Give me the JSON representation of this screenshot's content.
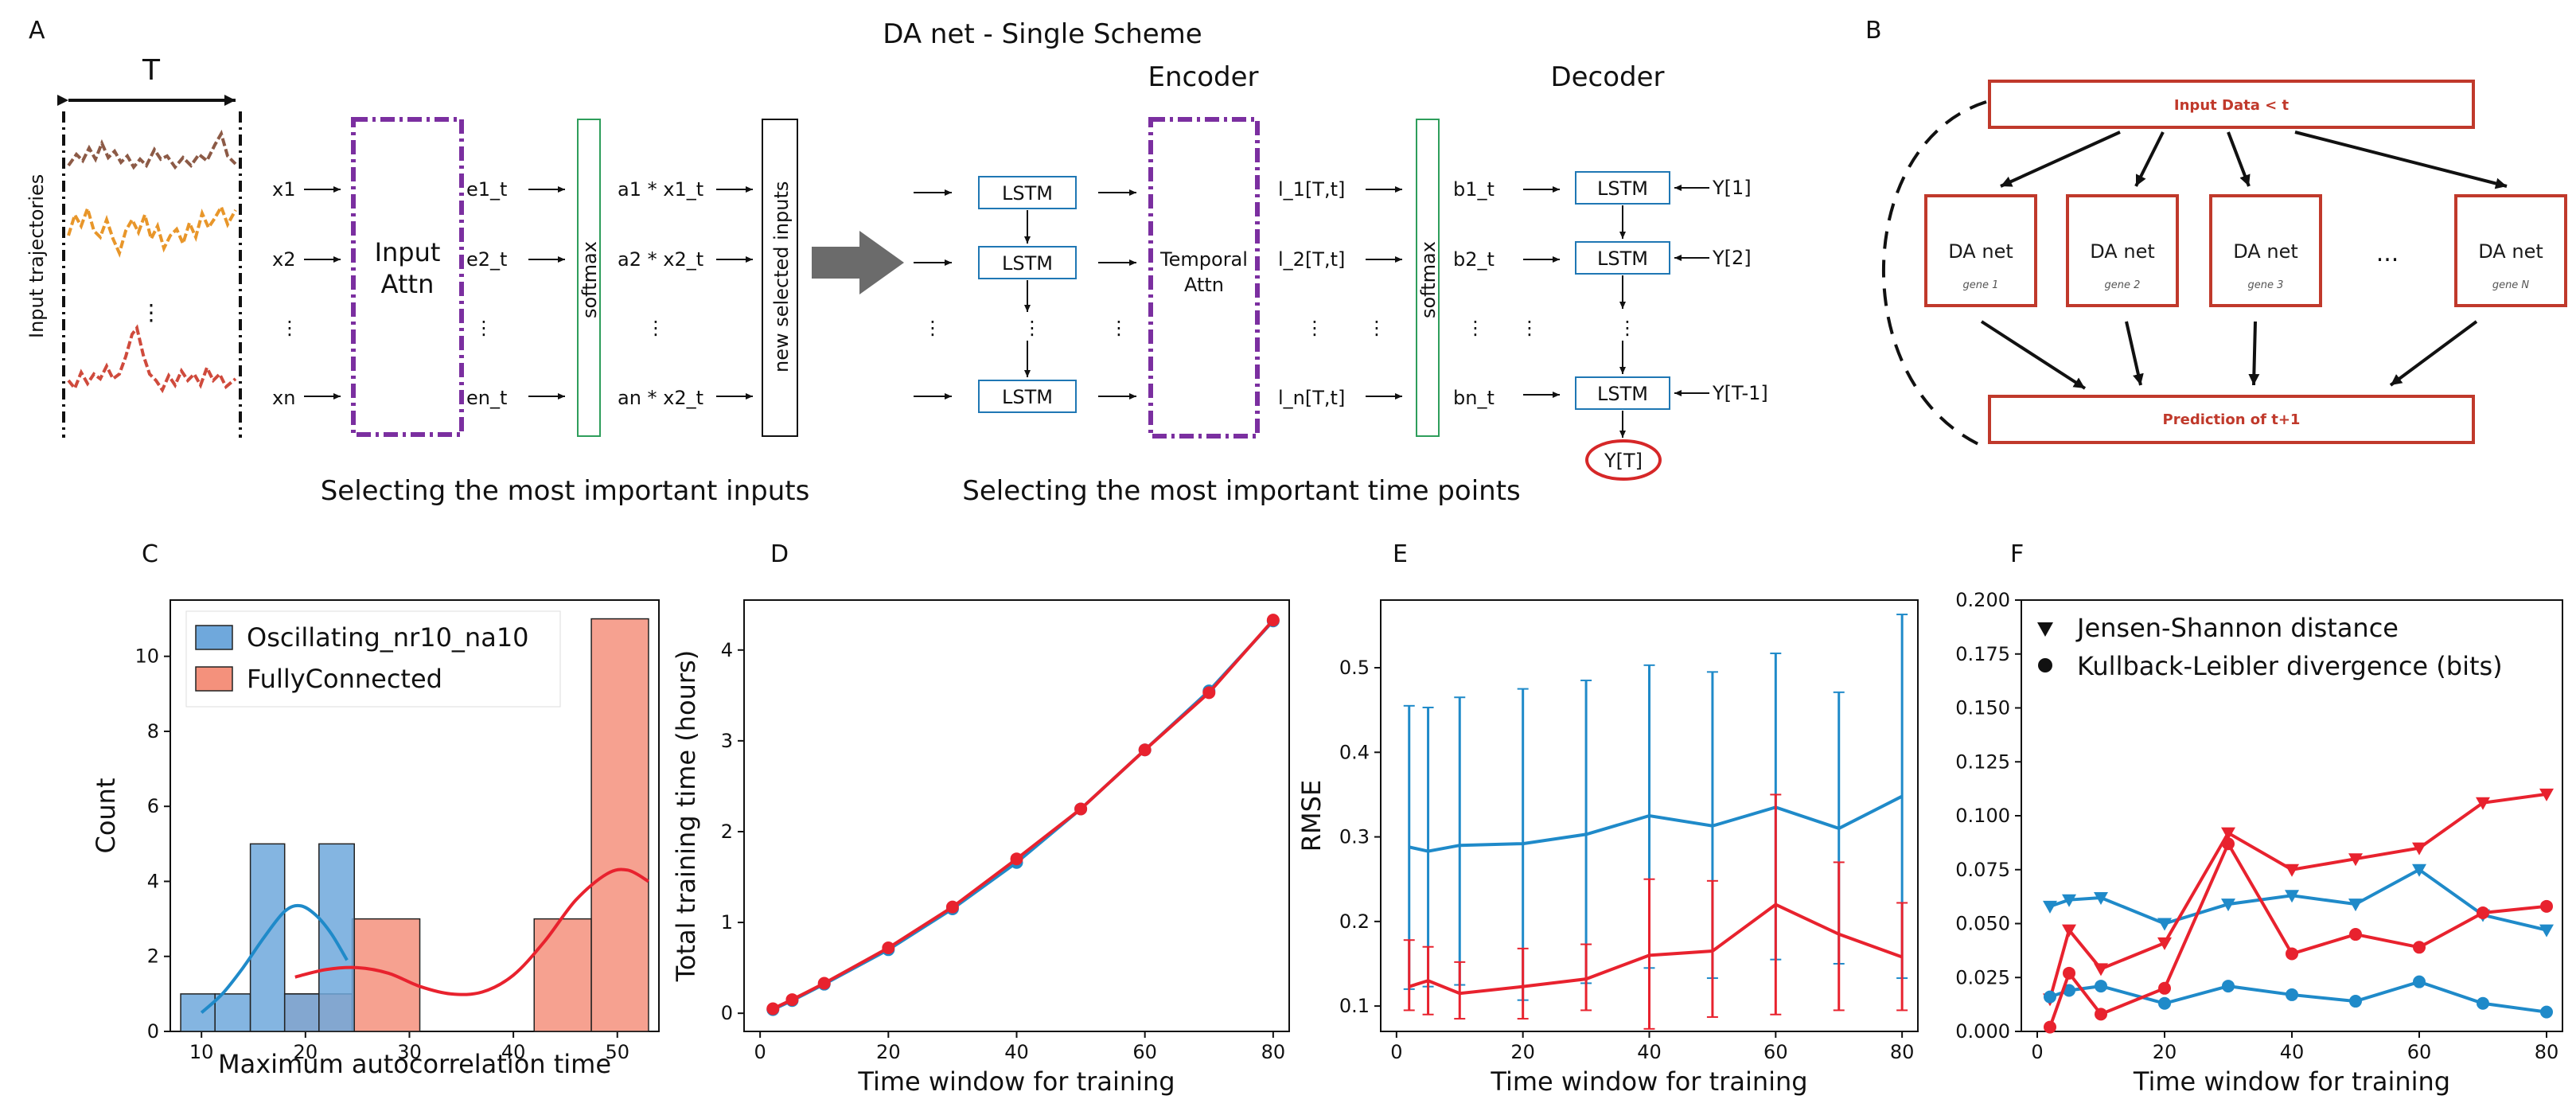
{
  "panel_labels": {
    "a": "A",
    "b": "B",
    "c": "C",
    "d": "D",
    "e": "E",
    "f": "F"
  },
  "schematic": {
    "title": "DA net - Single Scheme",
    "window_label": "T",
    "input_axis_label": "Input trajectories",
    "encoder_label": "Encoder",
    "decoder_label": "Decoder",
    "inputs": [
      "x1",
      "x2",
      "xn"
    ],
    "dots": "⋮",
    "input_attn": [
      "Input",
      "Attn"
    ],
    "e_labels": [
      "e1_t",
      "e2_t",
      "en_t"
    ],
    "softmax": "softmax",
    "a_labels": [
      "a1 * x1_t",
      "a2 * x2_t",
      "an * x2_t"
    ],
    "new_inputs": "new selected inputs",
    "lstm": "LSTM",
    "temporal_attn": [
      "Temporal",
      "Attn"
    ],
    "l_labels": [
      "l_1[T,t]",
      "l_2[T,t]",
      "l_n[T,t]"
    ],
    "b_labels": [
      "b1_t",
      "b2_t",
      "bn_t"
    ],
    "y_labels": [
      "Y[1]",
      "Y[2]",
      "Y[T-1]"
    ],
    "output": "Y[T]",
    "caption_left": "Selecting the most important inputs",
    "caption_right": "Selecting the most important time points",
    "colors": {
      "attn_box": "#7b2fa0",
      "softmax_box": "#2e9e5b",
      "lstm_box": "#1f77b4",
      "output": "#d62728"
    }
  },
  "scheme_b": {
    "input": "Input Data < t",
    "nets": [
      {
        "name": "DA net",
        "gene": "gene 1"
      },
      {
        "name": "DA net",
        "gene": "gene 2"
      },
      {
        "name": "DA net",
        "gene": "gene 3"
      },
      {
        "name": "DA net",
        "gene": "gene N"
      }
    ],
    "ellipsis": "...",
    "prediction": "Prediction of t+1",
    "color": "#c0392b"
  },
  "chart_data": [
    {
      "panel": "C",
      "type": "bar",
      "subtype": "histogram_with_kde",
      "xlabel": "Maximum autocorrelation time",
      "ylabel": "Count",
      "xlim": [
        7,
        54
      ],
      "ylim": [
        0,
        11.5
      ],
      "xticks": [
        10,
        20,
        30,
        40,
        50
      ],
      "yticks": [
        0,
        2,
        4,
        6,
        8,
        10
      ],
      "legend_position": "top-left",
      "series": [
        {
          "name": "Oscillating_nr10_na10",
          "color": "#6fa8dc",
          "bins": [
            [
              8,
              11.3,
              1
            ],
            [
              11.3,
              14.7,
              1
            ],
            [
              14.7,
              18,
              5
            ],
            [
              18,
              21.3,
              1
            ],
            [
              21.3,
              24.7,
              5
            ]
          ],
          "kde_x": [
            10,
            12,
            14,
            16,
            18,
            19.5,
            21,
            22.5,
            24
          ],
          "kde_y": [
            0.5,
            1.0,
            1.7,
            2.5,
            3.2,
            3.35,
            3.1,
            2.6,
            1.9
          ]
        },
        {
          "name": "FullyConnected",
          "color": "#f4917c",
          "bins": [
            [
              18,
              24.5,
              1
            ],
            [
              24.5,
              31,
              3
            ],
            [
              31,
              37.5,
              0
            ],
            [
              37.5,
              42,
              0
            ],
            [
              42,
              47.5,
              3
            ],
            [
              47.5,
              53,
              11
            ]
          ],
          "kde_x": [
            19,
            22,
            25,
            28,
            31,
            34,
            37,
            40,
            43,
            46,
            49,
            51,
            53
          ],
          "kde_y": [
            1.45,
            1.65,
            1.7,
            1.55,
            1.2,
            1.0,
            1.05,
            1.5,
            2.4,
            3.5,
            4.2,
            4.3,
            4.0
          ]
        }
      ]
    },
    {
      "panel": "D",
      "type": "line",
      "xlabel": "Time window for training",
      "ylabel": "Total training time (hours)",
      "xlim": [
        -2.5,
        82.5
      ],
      "ylim": [
        -0.2,
        4.55
      ],
      "xticks": [
        0,
        20,
        40,
        60,
        80
      ],
      "yticks": [
        0,
        1,
        2,
        3,
        4
      ],
      "x": [
        2,
        5,
        10,
        20,
        30,
        40,
        50,
        60,
        70,
        80
      ],
      "series": [
        {
          "name": "blue",
          "color": "#1f8ac9",
          "values": [
            0.04,
            0.14,
            0.32,
            0.7,
            1.15,
            1.66,
            2.25,
            2.9,
            3.55,
            4.32
          ]
        },
        {
          "name": "red",
          "color": "#e8222e",
          "values": [
            0.05,
            0.15,
            0.33,
            0.72,
            1.17,
            1.7,
            2.25,
            2.9,
            3.53,
            4.33
          ]
        }
      ]
    },
    {
      "panel": "E",
      "type": "line",
      "subtype": "errorbar",
      "xlabel": "Time window for training",
      "ylabel": "RMSE",
      "xlim": [
        -2.5,
        82.5
      ],
      "ylim": [
        0.07,
        0.58
      ],
      "xticks": [
        0,
        20,
        40,
        60,
        80
      ],
      "yticks": [
        0.1,
        0.2,
        0.3,
        0.4,
        0.5
      ],
      "x": [
        2,
        5,
        10,
        20,
        30,
        40,
        50,
        60,
        70,
        80
      ],
      "series": [
        {
          "name": "blue",
          "color": "#1f8ac9",
          "values": [
            0.288,
            0.283,
            0.29,
            0.292,
            0.303,
            0.325,
            0.313,
            0.335,
            0.31,
            0.348
          ],
          "err_low": [
            0.12,
            0.123,
            0.125,
            0.107,
            0.127,
            0.145,
            0.133,
            0.155,
            0.15,
            0.133
          ],
          "err_high": [
            0.455,
            0.453,
            0.465,
            0.475,
            0.485,
            0.503,
            0.495,
            0.517,
            0.471,
            0.563
          ]
        },
        {
          "name": "red",
          "color": "#e8222e",
          "values": [
            0.123,
            0.13,
            0.115,
            0.123,
            0.132,
            0.16,
            0.165,
            0.22,
            0.185,
            0.158
          ],
          "err_low": [
            0.095,
            0.09,
            0.085,
            0.085,
            0.095,
            0.073,
            0.087,
            0.09,
            0.095,
            0.095
          ],
          "err_high": [
            0.178,
            0.17,
            0.152,
            0.168,
            0.173,
            0.25,
            0.248,
            0.35,
            0.27,
            0.222
          ]
        }
      ]
    },
    {
      "panel": "F",
      "type": "line",
      "xlabel": "Time window for training",
      "ylabel": "",
      "xlim": [
        -2.5,
        82.5
      ],
      "ylim": [
        0,
        0.2
      ],
      "xticks": [
        0,
        20,
        40,
        60,
        80
      ],
      "yticks": [
        0.0,
        0.025,
        0.05,
        0.075,
        0.1,
        0.125,
        0.15,
        0.175,
        0.2
      ],
      "ytick_labels": [
        "0.000",
        "0.025",
        "0.050",
        "0.075",
        "0.100",
        "0.125",
        "0.150",
        "0.175",
        "0.200"
      ],
      "x": [
        2,
        5,
        10,
        20,
        30,
        40,
        50,
        60,
        70,
        80
      ],
      "legend": [
        "Jensen-Shannon distance",
        "Kullback-Leibler divergence (bits)"
      ],
      "legend_position": "top-left",
      "series": [
        {
          "name": "JS blue",
          "marker": "triangle",
          "color": "#1f8ac9",
          "values": [
            0.058,
            0.061,
            0.062,
            0.05,
            0.059,
            0.063,
            0.059,
            0.075,
            0.054,
            0.047
          ]
        },
        {
          "name": "JS red",
          "marker": "triangle",
          "color": "#e8222e",
          "values": [
            0.015,
            0.047,
            0.029,
            0.041,
            0.092,
            0.075,
            0.08,
            0.085,
            0.106,
            0.11
          ]
        },
        {
          "name": "KL blue",
          "marker": "circle",
          "color": "#1f8ac9",
          "values": [
            0.016,
            0.019,
            0.021,
            0.013,
            0.021,
            0.017,
            0.014,
            0.023,
            0.013,
            0.009
          ]
        },
        {
          "name": "KL red",
          "marker": "circle",
          "color": "#e8222e",
          "values": [
            0.002,
            0.027,
            0.008,
            0.02,
            0.087,
            0.036,
            0.045,
            0.039,
            0.055,
            0.058
          ]
        }
      ]
    }
  ]
}
